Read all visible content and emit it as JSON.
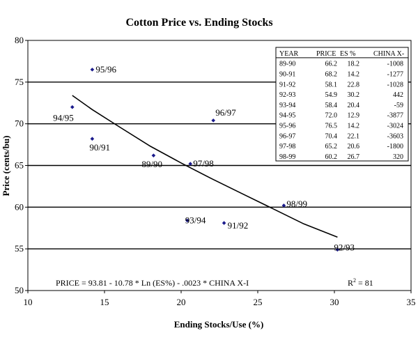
{
  "chart_data": {
    "type": "scatter",
    "title": "Cotton Price vs. Ending Stocks",
    "xlabel": "Ending Stocks/Use (%)",
    "ylabel": "Price (cents/bu)",
    "xlim": [
      10,
      35
    ],
    "ylim": [
      50,
      80
    ],
    "xticks": [
      10,
      15,
      20,
      25,
      30,
      35
    ],
    "yticks": [
      50,
      55,
      60,
      65,
      70,
      75,
      80
    ],
    "grid": "horizontal",
    "points": [
      {
        "label": "89/90",
        "x": 18.2,
        "y": 66.2
      },
      {
        "label": "90/91",
        "x": 14.2,
        "y": 68.2
      },
      {
        "label": "91/92",
        "x": 22.8,
        "y": 58.1
      },
      {
        "label": "92/93",
        "x": 30.2,
        "y": 54.9
      },
      {
        "label": "93/94",
        "x": 20.4,
        "y": 58.4
      },
      {
        "label": "94/95",
        "x": 12.9,
        "y": 72.0
      },
      {
        "label": "95/96",
        "x": 14.2,
        "y": 76.5
      },
      {
        "label": "96/97",
        "x": 22.1,
        "y": 70.4
      },
      {
        "label": "97/98",
        "x": 20.6,
        "y": 65.2
      },
      {
        "label": "98/99",
        "x": 26.7,
        "y": 60.2
      }
    ],
    "trend_curve": [
      {
        "x": 12.9,
        "y": 73.4
      },
      {
        "x": 14.2,
        "y": 71.7
      },
      {
        "x": 16,
        "y": 69.6
      },
      {
        "x": 18,
        "y": 67.3
      },
      {
        "x": 20,
        "y": 65.3
      },
      {
        "x": 22,
        "y": 63.4
      },
      {
        "x": 24,
        "y": 61.6
      },
      {
        "x": 26,
        "y": 59.8
      },
      {
        "x": 28,
        "y": 58.0
      },
      {
        "x": 30.2,
        "y": 56.4
      }
    ],
    "equation": "PRICE = 93.81 - 10.78 * Ln (ES%) - .0023 * CHINA X-I",
    "r2_prefix": "R",
    "r2_sup": "2",
    "r2_value": "=  81",
    "table": {
      "headers": [
        "YEAR",
        "PRICE",
        "ES %",
        "CHINA X-"
      ],
      "rows": [
        [
          "89-90",
          "66.2",
          "18.2",
          "-1008"
        ],
        [
          "90-91",
          "68.2",
          "14.2",
          "-1277"
        ],
        [
          "91-92",
          "58.1",
          "22.8",
          "-1028"
        ],
        [
          "92-93",
          "54.9",
          "30.2",
          "442"
        ],
        [
          "93-94",
          "58.4",
          "20.4",
          "-59"
        ],
        [
          "94-95",
          "72.0",
          "12.9",
          "-3877"
        ],
        [
          "95-96",
          "76.5",
          "14.2",
          "-3024"
        ],
        [
          "96-97",
          "70.4",
          "22.1",
          "-3603"
        ],
        [
          "97-98",
          "65.2",
          "20.6",
          "-1800"
        ],
        [
          "98-99",
          "60.2",
          "26.7",
          "320"
        ]
      ]
    }
  }
}
